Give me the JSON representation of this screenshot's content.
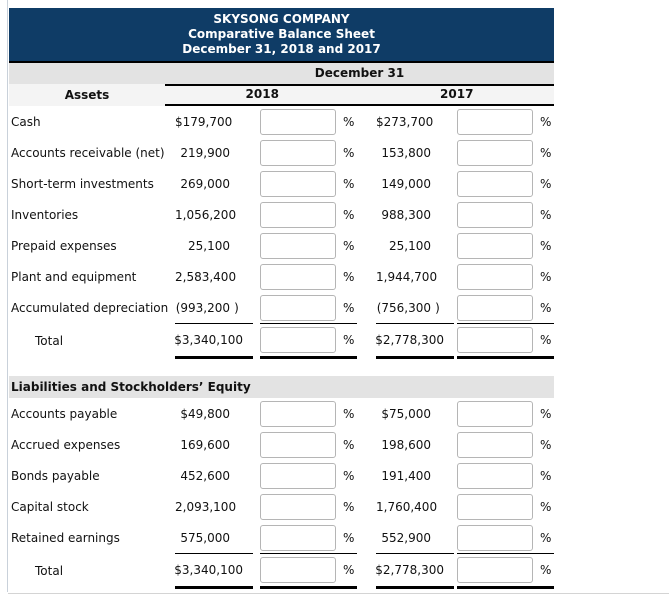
{
  "header": {
    "company": "SKYSONG COMPANY",
    "report_title": "Comparative Balance Sheet",
    "period": "December 31, 2018 and 2017"
  },
  "table": {
    "date_header": "December 31",
    "assets_header": "Assets",
    "col_2018": "2018",
    "col_2017": "2017",
    "pct": "%",
    "input_value": "",
    "assets_rows": [
      {
        "label": "Cash",
        "a2018": "$179,700",
        "p2018": "",
        "a2017": "$273,700",
        "p2017": ""
      },
      {
        "label": "Accounts receivable (net)",
        "a2018": "219,900",
        "p2018": "",
        "a2017": "153,800",
        "p2017": ""
      },
      {
        "label": "Short-term investments",
        "a2018": "269,000",
        "p2018": "",
        "a2017": "149,000",
        "p2017": ""
      },
      {
        "label": "Inventories",
        "a2018": "1,056,200",
        "p2018": "",
        "a2017": "988,300",
        "p2017": ""
      },
      {
        "label": "Prepaid expenses",
        "a2018": "25,100",
        "p2018": "",
        "a2017": "25,100",
        "p2017": ""
      },
      {
        "label": "Plant and equipment",
        "a2018": "2,583,400",
        "p2018": "",
        "a2017": "1,944,700",
        "p2017": ""
      },
      {
        "label": "Accumulated depreciation",
        "a2018": "(993,200",
        "p2018": ")",
        "a2017": "(756,300",
        "p2017": ")"
      }
    ],
    "assets_total": {
      "label": "Total",
      "a2018": "$3,340,100",
      "p2018": "",
      "a2017": "$2,778,300",
      "p2017": ""
    },
    "liabilities_header": "Liabilities and Stockholders’ Equity",
    "liab_rows": [
      {
        "label": "Accounts payable",
        "a2018": "$49,800",
        "p2018": "",
        "a2017": "$75,000",
        "p2017": ""
      },
      {
        "label": "Accrued expenses",
        "a2018": "169,600",
        "p2018": "",
        "a2017": "198,600",
        "p2017": ""
      },
      {
        "label": "Bonds payable",
        "a2018": "452,600",
        "p2018": "",
        "a2017": "191,400",
        "p2017": ""
      },
      {
        "label": "Capital stock",
        "a2018": "2,093,100",
        "p2018": "",
        "a2017": "1,760,400",
        "p2017": ""
      },
      {
        "label": "Retained earnings",
        "a2018": "575,000",
        "p2018": "",
        "a2017": "552,900",
        "p2017": ""
      }
    ],
    "liab_total": {
      "label": "Total",
      "a2018": "$3,340,100",
      "p2018": "",
      "a2017": "$2,778,300",
      "p2017": ""
    }
  },
  "colors": {
    "navy": "#0f3c66",
    "band_gray": "#e3e3e3",
    "cols_gray": "#f4f4f4",
    "input_border": "#b5b5b5",
    "rule_black": "#000000"
  }
}
